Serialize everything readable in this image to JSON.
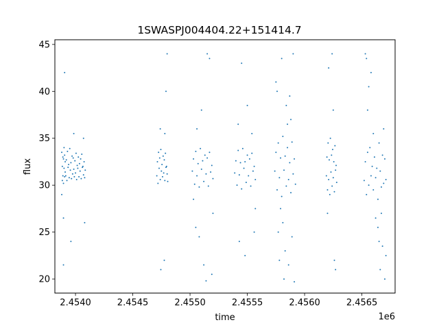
{
  "chart_data": {
    "type": "scatter",
    "title": "1SWASPJ004404.22+151414.7",
    "xlabel": "time",
    "ylabel": "flux",
    "x_offset_label": "1e6",
    "xlim": [
      2453820,
      2456790
    ],
    "ylim": [
      18.5,
      45.5
    ],
    "x_ticks": [
      2454000,
      2454500,
      2455000,
      2455500,
      2456000,
      2456500
    ],
    "x_tick_labels": [
      "2.4540",
      "2.4545",
      "2.4550",
      "2.4555",
      "2.4560",
      "2.4565"
    ],
    "y_ticks": [
      20,
      25,
      30,
      35,
      40,
      45
    ],
    "y_tick_labels": [
      "20",
      "25",
      "30",
      "35",
      "40",
      "45"
    ],
    "grid": false,
    "legend": false,
    "color": "#1f77b4",
    "marker_size": 1,
    "series": [
      {
        "x": [
          2453880,
          2453880,
          2453885,
          2453885,
          2453890,
          2453890,
          2453895,
          2453895,
          2453900,
          2453900,
          2453905,
          2453905,
          2453910,
          2453910,
          2453915,
          2453920,
          2453925,
          2453930,
          2453935,
          2453940,
          2453945,
          2453950,
          2453955,
          2453960,
          2453965,
          2453970,
          2453975,
          2453980,
          2453985,
          2453990,
          2453995,
          2454000,
          2454005,
          2454010,
          2454015,
          2454020,
          2454025,
          2454030,
          2454035,
          2454040,
          2454045,
          2454050,
          2454055,
          2454060,
          2454065,
          2454070,
          2454075,
          2454080,
          2454085,
          2453895,
          2453985,
          2454070,
          2453895,
          2453905,
          2453960,
          2454080,
          2454710,
          2454715,
          2454720,
          2454725,
          2454730,
          2454735,
          2454740,
          2454745,
          2454750,
          2454755,
          2454760,
          2454765,
          2454770,
          2454775,
          2454780,
          2454785,
          2454790,
          2454795,
          2454800,
          2454805,
          2454740,
          2454780,
          2454790,
          2454800,
          2454745,
          2454775,
          2455020,
          2455030,
          2455040,
          2455050,
          2455060,
          2455070,
          2455080,
          2455090,
          2455100,
          2455110,
          2455120,
          2455130,
          2455140,
          2455150,
          2455160,
          2455170,
          2455180,
          2455190,
          2455200,
          2455030,
          2455060,
          2455100,
          2455150,
          2455170,
          2455080,
          2455120,
          2455190,
          2455200,
          2455050,
          2455140,
          2455390,
          2455400,
          2455410,
          2455420,
          2455430,
          2455440,
          2455450,
          2455460,
          2455470,
          2455480,
          2455490,
          2455500,
          2455510,
          2455520,
          2455530,
          2455540,
          2455550,
          2455560,
          2455570,
          2455420,
          2455450,
          2455500,
          2455540,
          2455430,
          2455480,
          2455560,
          2455570,
          2455740,
          2455750,
          2455760,
          2455770,
          2455780,
          2455790,
          2455800,
          2455810,
          2455820,
          2455830,
          2455840,
          2455850,
          2455860,
          2455870,
          2455880,
          2455890,
          2455900,
          2455910,
          2455920,
          2455760,
          2455800,
          2455840,
          2455880,
          2455900,
          2455780,
          2455820,
          2455860,
          2455890,
          2455910,
          2455750,
          2455770,
          2455850,
          2455870,
          2455830,
          2455810,
          2455790,
          2456190,
          2456195,
          2456200,
          2456205,
          2456210,
          2456215,
          2456220,
          2456225,
          2456230,
          2456235,
          2456240,
          2456245,
          2456250,
          2456255,
          2456260,
          2456265,
          2456270,
          2456275,
          2456280,
          2456210,
          2456240,
          2456260,
          2456270,
          2456200,
          2456250,
          2456520,
          2456530,
          2456540,
          2456550,
          2456560,
          2456570,
          2456580,
          2456590,
          2456600,
          2456610,
          2456620,
          2456630,
          2456640,
          2456650,
          2456660,
          2456670,
          2456680,
          2456690,
          2456700,
          2456710,
          2456530,
          2456540,
          2456550,
          2456560,
          2456620,
          2456650,
          2456660,
          2456680,
          2456700,
          2456600,
          2456640,
          2456670,
          2456690,
          2456710,
          2456580
        ],
        "y": [
          29.0,
          33.5,
          30.5,
          32.0,
          31.0,
          33.0,
          30.2,
          32.8,
          31.8,
          34.0,
          30.9,
          33.2,
          31.4,
          32.5,
          31.0,
          32.7,
          30.5,
          33.6,
          31.9,
          32.2,
          30.8,
          33.9,
          31.6,
          32.4,
          30.7,
          33.1,
          31.2,
          32.9,
          31.7,
          30.9,
          32.6,
          31.3,
          33.4,
          30.6,
          32.1,
          31.8,
          33.0,
          30.9,
          32.3,
          31.5,
          32.8,
          30.7,
          33.3,
          31.9,
          32.0,
          31.1,
          32.5,
          30.8,
          31.6,
          26.5,
          35.5,
          35.0,
          21.5,
          42.0,
          24.0,
          26.0,
          31.0,
          32.5,
          30.2,
          33.5,
          31.8,
          32.9,
          30.6,
          33.8,
          31.5,
          32.2,
          30.9,
          33.1,
          31.3,
          32.7,
          30.5,
          33.4,
          31.9,
          32.0,
          31.2,
          30.4,
          36.0,
          35.5,
          40.0,
          44.0,
          21.0,
          22.0,
          31.5,
          32.8,
          30.1,
          33.6,
          31.0,
          32.3,
          29.8,
          33.9,
          31.7,
          32.6,
          30.4,
          33.2,
          31.2,
          32.9,
          29.9,
          33.5,
          31.4,
          32.1,
          30.7,
          28.5,
          36.0,
          38.0,
          44.0,
          43.5,
          24.5,
          21.5,
          20.5,
          27.0,
          25.5,
          19.8,
          31.3,
          32.6,
          30.0,
          33.7,
          31.1,
          32.4,
          29.6,
          33.9,
          31.8,
          32.5,
          30.3,
          33.2,
          31.0,
          32.8,
          29.9,
          33.4,
          31.5,
          32.0,
          30.6,
          36.5,
          43.0,
          38.5,
          35.5,
          24.0,
          22.5,
          25.0,
          27.5,
          31.5,
          33.5,
          29.5,
          34.5,
          30.8,
          32.9,
          28.8,
          35.2,
          31.6,
          33.1,
          29.9,
          34.0,
          30.6,
          32.4,
          29.2,
          34.6,
          31.2,
          32.8,
          30.1,
          40.0,
          43.5,
          38.5,
          37.0,
          44.0,
          22.0,
          20.0,
          21.5,
          24.5,
          19.7,
          41.0,
          25.0,
          36.5,
          39.5,
          23.0,
          26.0,
          27.5,
          31.0,
          33.0,
          29.5,
          34.5,
          30.6,
          32.7,
          29.0,
          35.0,
          31.4,
          33.2,
          29.9,
          33.8,
          30.8,
          32.5,
          29.3,
          34.2,
          31.6,
          32.1,
          30.3,
          42.5,
          44.0,
          22.0,
          21.0,
          27.0,
          38.0,
          30.5,
          32.5,
          29.0,
          33.5,
          30.0,
          34.0,
          31.0,
          32.0,
          29.5,
          33.0,
          30.8,
          31.8,
          28.5,
          34.5,
          31.5,
          29.8,
          33.2,
          30.2,
          32.8,
          30.6,
          44.0,
          43.5,
          38.0,
          40.5,
          26.5,
          24.0,
          21.0,
          23.5,
          20.0,
          35.5,
          25.5,
          27.0,
          36.0,
          22.5,
          42.0
        ]
      }
    ]
  }
}
